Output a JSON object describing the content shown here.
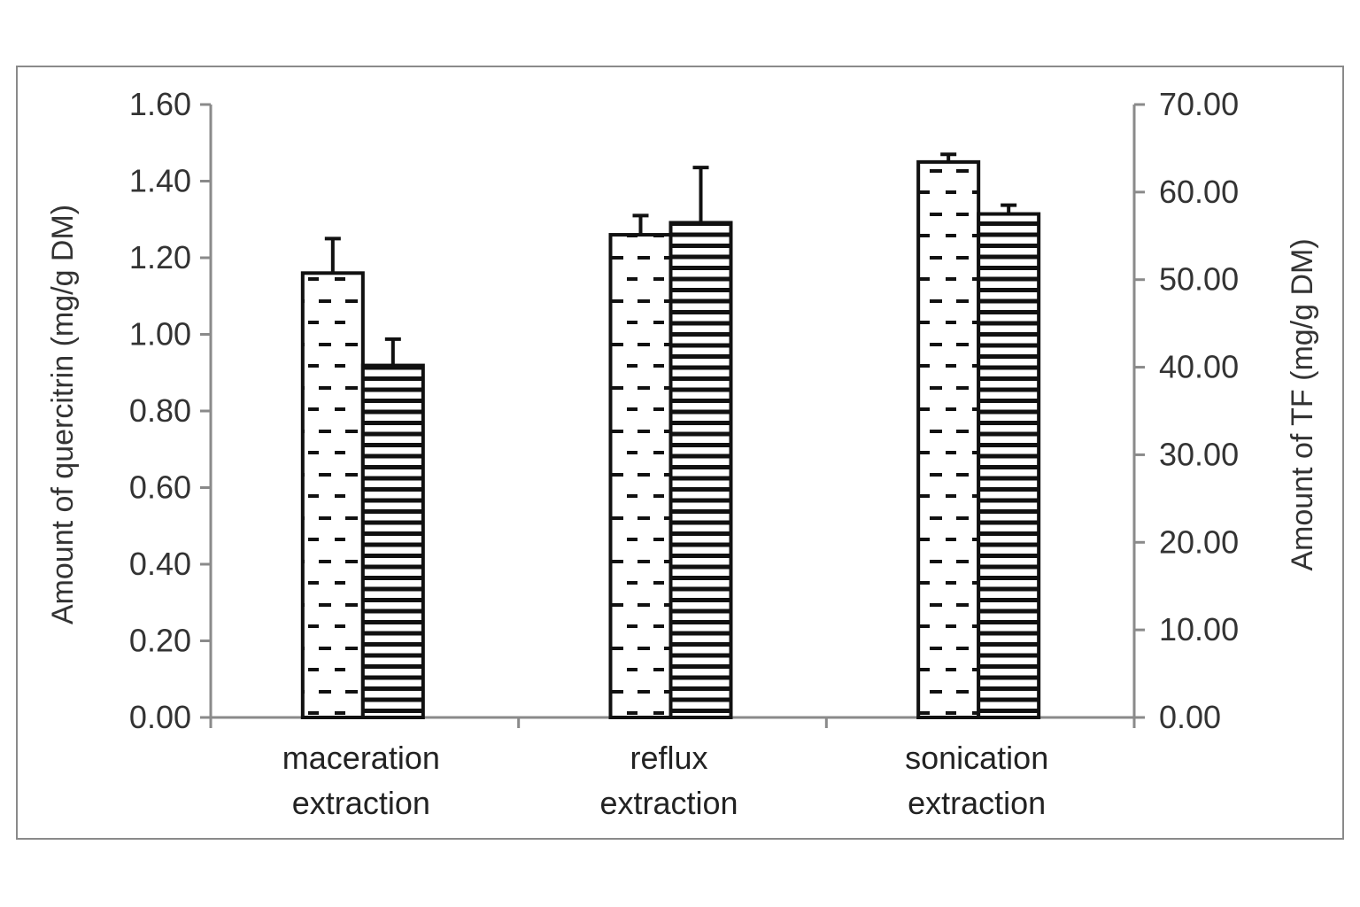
{
  "chart_data": {
    "type": "bar",
    "title": "",
    "categories": [
      [
        "maceration",
        "extraction"
      ],
      [
        "reflux",
        "extraction"
      ],
      [
        "sonication",
        "extraction"
      ]
    ],
    "ylabel_left": "Amount of quercitrin (mg/g DM)",
    "ylabel_right": "Amount of TF (mg/g DM)",
    "ylim_left": [
      0,
      1.6
    ],
    "ylim_right": [
      0,
      70
    ],
    "yticks_left": [
      "0.00",
      "0.20",
      "0.40",
      "0.60",
      "0.80",
      "1.00",
      "1.20",
      "1.40",
      "1.60"
    ],
    "yticks_right": [
      "0.00",
      "10.00",
      "20.00",
      "30.00",
      "40.00",
      "50.00",
      "60.00",
      "70.00"
    ],
    "series": [
      {
        "name": "quercitrin",
        "axis": "left",
        "pattern": "dashes",
        "values": [
          1.16,
          1.26,
          1.45
        ],
        "errors": [
          0.09,
          0.05,
          0.02
        ]
      },
      {
        "name": "TF",
        "axis": "right",
        "pattern": "horizontal-lines",
        "values": [
          40.2,
          56.5,
          57.5
        ],
        "errors": [
          3.0,
          6.3,
          1.0
        ]
      }
    ],
    "grid": false,
    "legend": "none"
  }
}
